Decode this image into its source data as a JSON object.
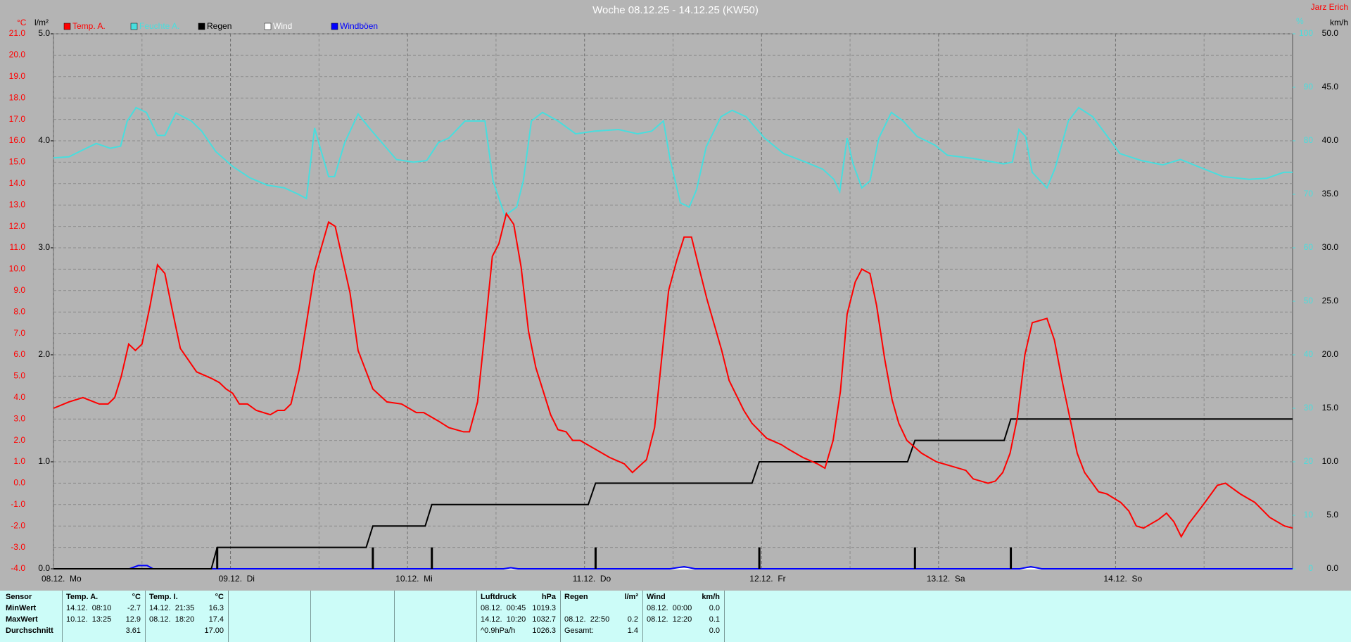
{
  "chart_data": {
    "type": "line",
    "title": "Woche 08.12.25 - 14.12.25 (KW50)",
    "author": "Jarz Erich",
    "y_label": "°C",
    "y_rain_label": "l/m²",
    "y_humidity_label": "%",
    "y2_label": "km/h",
    "xlim": [
      0,
      168
    ],
    "xticks": [
      {
        "value": 0,
        "label": "08.12.  Mo"
      },
      {
        "value": 24,
        "label": "09.12.  Di"
      },
      {
        "value": 48,
        "label": "10.12.  Mi"
      },
      {
        "value": 72,
        "label": "11.12.  Do"
      },
      {
        "value": 96,
        "label": "12.12.  Fr"
      },
      {
        "value": 120,
        "label": "13.12.  Sa"
      },
      {
        "value": 144,
        "label": "14.12.  So"
      }
    ],
    "xminor": [
      12,
      36,
      60,
      84,
      108,
      132,
      156
    ],
    "ylim": [
      -4,
      21
    ],
    "yticks": [
      {
        "value": -4,
        "label": "-4.0"
      },
      {
        "value": -3,
        "label": "-3.0"
      },
      {
        "value": -2,
        "label": "-2.0"
      },
      {
        "value": -1,
        "label": "-1.0"
      },
      {
        "value": 0,
        "label": "0.0"
      },
      {
        "value": 1,
        "label": "1.0"
      },
      {
        "value": 2,
        "label": "2.0"
      },
      {
        "value": 3,
        "label": "3.0"
      },
      {
        "value": 4,
        "label": "4.0"
      },
      {
        "value": 5,
        "label": "5.0"
      },
      {
        "value": 6,
        "label": "6.0"
      },
      {
        "value": 7,
        "label": "7.0"
      },
      {
        "value": 8,
        "label": "8.0"
      },
      {
        "value": 9,
        "label": "9.0"
      },
      {
        "value": 10,
        "label": "10.0"
      },
      {
        "value": 11,
        "label": "11.0"
      },
      {
        "value": 12,
        "label": "12.0"
      },
      {
        "value": 13,
        "label": "13.0"
      },
      {
        "value": 14,
        "label": "14.0"
      },
      {
        "value": 15,
        "label": "15.0"
      },
      {
        "value": 16,
        "label": "16.0"
      },
      {
        "value": 17,
        "label": "17.0"
      },
      {
        "value": 18,
        "label": "18.0"
      },
      {
        "value": 19,
        "label": "19.0"
      },
      {
        "value": 20,
        "label": "20.0"
      },
      {
        "value": 21,
        "label": "21.0"
      }
    ],
    "y_rain_lim": [
      0,
      5
    ],
    "y_rain_ticks": [
      {
        "value": 0,
        "label": "0.0"
      },
      {
        "value": 1,
        "label": "1.0"
      },
      {
        "value": 2,
        "label": "2.0"
      },
      {
        "value": 3,
        "label": "3.0"
      },
      {
        "value": 4,
        "label": "4.0"
      },
      {
        "value": 5,
        "label": "5.0"
      }
    ],
    "y_humidity_lim": [
      0,
      100
    ],
    "y_humidity_ticks": [
      0,
      10,
      20,
      30,
      40,
      50,
      60,
      70,
      80,
      90,
      100
    ],
    "y2lim": [
      0,
      50
    ],
    "y2ticks": [
      {
        "value": 0,
        "label": "0.0"
      },
      {
        "value": 5,
        "label": "5.0"
      },
      {
        "value": 10,
        "label": "10.0"
      },
      {
        "value": 15,
        "label": "15.0"
      },
      {
        "value": 20,
        "label": "20.0"
      },
      {
        "value": 25,
        "label": "25.0"
      },
      {
        "value": 30,
        "label": "30.0"
      },
      {
        "value": 35,
        "label": "35.0"
      },
      {
        "value": 40,
        "label": "40.0"
      },
      {
        "value": 45,
        "label": "45.0"
      },
      {
        "value": 50,
        "label": "50.0"
      }
    ],
    "grid": true,
    "series": [
      {
        "name": "Temp. A.",
        "color": "#ff0000",
        "axis": "y",
        "x": [
          0,
          2.1,
          4,
          6.2,
          7.4,
          8.3,
          9.2,
          10.2,
          11.1,
          12,
          13.1,
          14.1,
          15.1,
          16.1,
          17.2,
          19.4,
          21.4,
          22.5,
          23.4,
          24.3,
          25.2,
          26.3,
          27.5,
          29.4,
          30.4,
          31.3,
          32.2,
          33.3,
          35.4,
          36.3,
          37.3,
          38.2,
          40.2,
          41.3,
          43.3,
          45.2,
          47.2,
          49.2,
          50.2,
          52.2,
          53.6,
          55.6,
          56.4,
          57.5,
          58.4,
          59.5,
          60.4,
          61.4,
          62.4,
          63.4,
          64.4,
          65.4,
          67.4,
          68.4,
          69.5,
          70.4,
          71.4,
          73.4,
          75.4,
          77.4,
          78.5,
          80.4,
          81.5,
          83.4,
          84.5,
          85.5,
          86.5,
          87.5,
          88.6,
          90.6,
          91.6,
          93.6,
          94.7,
          96.7,
          98.7,
          99.6,
          101.6,
          103.6,
          104.6,
          105.7,
          106.7,
          107.6,
          108.7,
          109.6,
          110.7,
          111.6,
          112.7,
          113.7,
          114.6,
          115.7,
          117.7,
          119.7,
          121.7,
          123.7,
          124.7,
          126.7,
          127.7,
          128.7,
          129.7,
          130.7,
          131.7,
          132.7,
          134.7,
          135.7,
          136.8,
          138.8,
          139.8,
          141.7,
          142.8,
          144.7,
          145.8,
          146.8,
          147.8,
          149.8,
          150.9,
          151.9,
          152.9,
          153.9,
          155.9,
          157.8,
          158.9,
          160.9,
          162.9,
          164.9,
          166.9,
          168
        ],
        "values": [
          3.5,
          3.8,
          4.0,
          3.7,
          3.7,
          4.0,
          5.0,
          6.5,
          6.2,
          6.5,
          8.3,
          10.2,
          9.8,
          8.1,
          6.3,
          5.2,
          4.9,
          4.7,
          4.4,
          4.2,
          3.7,
          3.7,
          3.4,
          3.2,
          3.4,
          3.4,
          3.7,
          5.3,
          9.9,
          11.0,
          12.2,
          12.0,
          8.9,
          6.2,
          4.4,
          3.8,
          3.7,
          3.3,
          3.3,
          2.9,
          2.6,
          2.4,
          2.4,
          3.8,
          6.8,
          10.6,
          11.2,
          12.6,
          12.1,
          10.1,
          7.1,
          5.4,
          3.2,
          2.5,
          2.4,
          2.0,
          2.0,
          1.6,
          1.2,
          0.9,
          0.5,
          1.1,
          2.6,
          9.0,
          10.4,
          11.5,
          11.5,
          10.1,
          8.6,
          6.2,
          4.8,
          3.4,
          2.8,
          2.1,
          1.8,
          1.6,
          1.2,
          0.9,
          0.7,
          2.0,
          4.3,
          7.9,
          9.4,
          10.0,
          9.8,
          8.3,
          5.8,
          3.9,
          2.8,
          2.0,
          1.4,
          1.0,
          0.8,
          0.6,
          0.2,
          0.0,
          0.1,
          0.5,
          1.4,
          3.1,
          6.0,
          7.5,
          7.7,
          6.7,
          4.7,
          1.4,
          0.5,
          -0.4,
          -0.5,
          -0.9,
          -1.3,
          -2.0,
          -2.1,
          -1.7,
          -1.4,
          -1.8,
          -2.5,
          -1.9,
          -1.0,
          -0.1,
          0.0,
          -0.5,
          -0.9,
          -1.6,
          -2.0,
          -2.1
        ]
      },
      {
        "name": "Feuchte A.",
        "color": "#48dede",
        "axis": "humidity",
        "x": [
          0,
          2.1,
          4.0,
          5.8,
          7.7,
          9.1,
          10.0,
          11.2,
          12.6,
          14.1,
          15.1,
          16.6,
          18.7,
          20.1,
          22.0,
          24.3,
          26.6,
          29.0,
          31.3,
          33.2,
          34.3,
          35.4,
          36.1,
          37.3,
          38.1,
          39.5,
          41.3,
          43.0,
          46.5,
          48.8,
          50.6,
          52.2,
          53.6,
          55.8,
          57.1,
          58.5,
          59.6,
          61.2,
          62.8,
          63.7,
          64.8,
          66.3,
          68.4,
          70.8,
          73.4,
          76.6,
          79.2,
          81.1,
          82.7,
          83.6,
          85.0,
          86.2,
          87.2,
          88.5,
          90.5,
          92.0,
          93.9,
          96.4,
          99.0,
          102.0,
          104.3,
          105.8,
          106.6,
          107.6,
          108.4,
          109.6,
          110.7,
          111.9,
          113.6,
          115.2,
          117.1,
          119.5,
          121.2,
          124.7,
          128.8,
          130.0,
          130.9,
          131.8,
          132.7,
          134.7,
          135.8,
          137.6,
          139.0,
          140.9,
          142.9,
          144.6,
          147.5,
          150.4,
          152.8,
          155.7,
          158.6,
          162.1,
          164.5,
          166.8,
          168
        ],
        "values": [
          76.8,
          77,
          78.3,
          79.5,
          78.6,
          79,
          83.7,
          86.2,
          85.3,
          81,
          81,
          85.2,
          83.7,
          81.8,
          78,
          75.2,
          73.1,
          71.7,
          71.2,
          70,
          69.2,
          82.4,
          79,
          73.3,
          73.3,
          79.7,
          85,
          82.1,
          76.5,
          76,
          76.3,
          79.7,
          80.5,
          83.7,
          83.7,
          83.7,
          72.5,
          66,
          67.6,
          72.5,
          83.7,
          85.3,
          83.7,
          81.3,
          81.8,
          82.1,
          81.3,
          81.8,
          83.7,
          76.5,
          68.4,
          67.6,
          70.9,
          78.9,
          84.5,
          85.7,
          84.5,
          80.5,
          77.6,
          76,
          74.7,
          72.8,
          70.5,
          80.5,
          75.7,
          71.2,
          72.5,
          80.5,
          85.3,
          83.7,
          80.8,
          79.2,
          77.3,
          76.7,
          75.7,
          76,
          82.1,
          80.8,
          74.1,
          71.2,
          74.9,
          83.7,
          86.2,
          84.5,
          80.8,
          77.6,
          76.3,
          75.5,
          76.5,
          74.9,
          73.3,
          72.8,
          73,
          74.1,
          74.1
        ]
      },
      {
        "name": "Regen",
        "color": "#000000",
        "axis": "rain",
        "x": [
          0,
          21.4,
          22.2,
          42.4,
          43.3,
          50.4,
          51.3,
          72.5,
          73.5,
          94.7,
          95.7,
          115.8,
          116.8,
          128.9,
          129.8,
          168
        ],
        "values": [
          0,
          0,
          0.2,
          0.2,
          0.4,
          0.4,
          0.6,
          0.6,
          0.8,
          0.8,
          1.0,
          1.0,
          1.2,
          1.2,
          1.4,
          1.4
        ],
        "bars": {
          "x": [
            22.2,
            43.3,
            51.3,
            73.5,
            95.7,
            116.8,
            129.8
          ],
          "values": [
            0.2,
            0.2,
            0.2,
            0.2,
            0.2,
            0.2,
            0.2
          ]
        }
      },
      {
        "name": "Wind",
        "color": "#ffffff",
        "axis": "y2",
        "x": [
          0,
          168
        ],
        "values": [
          0,
          0
        ]
      },
      {
        "name": "Windböen",
        "color": "#0000ff",
        "axis": "y2",
        "x": [
          0,
          10.3,
          11.5,
          12.7,
          13.5,
          61,
          62,
          63,
          78.5,
          83.6,
          85.5,
          87,
          103.6,
          107.8,
          131,
          132.5,
          134,
          168
        ],
        "values": [
          0,
          0,
          0.3,
          0.3,
          0,
          0,
          0.1,
          0,
          0,
          0,
          0.2,
          0,
          0,
          0,
          0,
          0.2,
          0,
          0
        ]
      }
    ]
  },
  "stats": {
    "row_labels": [
      "Sensor",
      "MinWert",
      "MaxWert",
      "Durchschnitt"
    ],
    "groups": [
      {
        "title": "Temp. A.",
        "unit": "°C",
        "rows": [
          [
            "14.12.  08:10",
            "-2.7"
          ],
          [
            "10.12.  13:25",
            "12.9"
          ],
          [
            null,
            "3.61"
          ]
        ]
      },
      {
        "title": "Temp. I.",
        "unit": "°C",
        "rows": [
          [
            "14.12.  21:35",
            "16.3"
          ],
          [
            "08.12.  18:20",
            "17.4"
          ],
          [
            null,
            "17.00"
          ]
        ]
      },
      {
        "title": "Luftdruck",
        "unit": "hPa",
        "rows": [
          [
            "08.12.  00:45",
            "1019.3"
          ],
          [
            "14.12.  10:20",
            "1032.7"
          ],
          [
            "^0.9hPa/h",
            "1026.3"
          ]
        ]
      },
      {
        "title": "Regen",
        "unit": "l/m²",
        "rows": [
          [
            null,
            null
          ],
          [
            "08.12.  22:50",
            "0.2"
          ],
          [
            "Gesamt:",
            "1.4"
          ]
        ]
      },
      {
        "title": "Wind",
        "unit": "km/h",
        "rows": [
          [
            "08.12.  00:00",
            "0.0"
          ],
          [
            "08.12.  12:20",
            "0.1"
          ],
          [
            null,
            "0.0"
          ]
        ]
      }
    ]
  }
}
